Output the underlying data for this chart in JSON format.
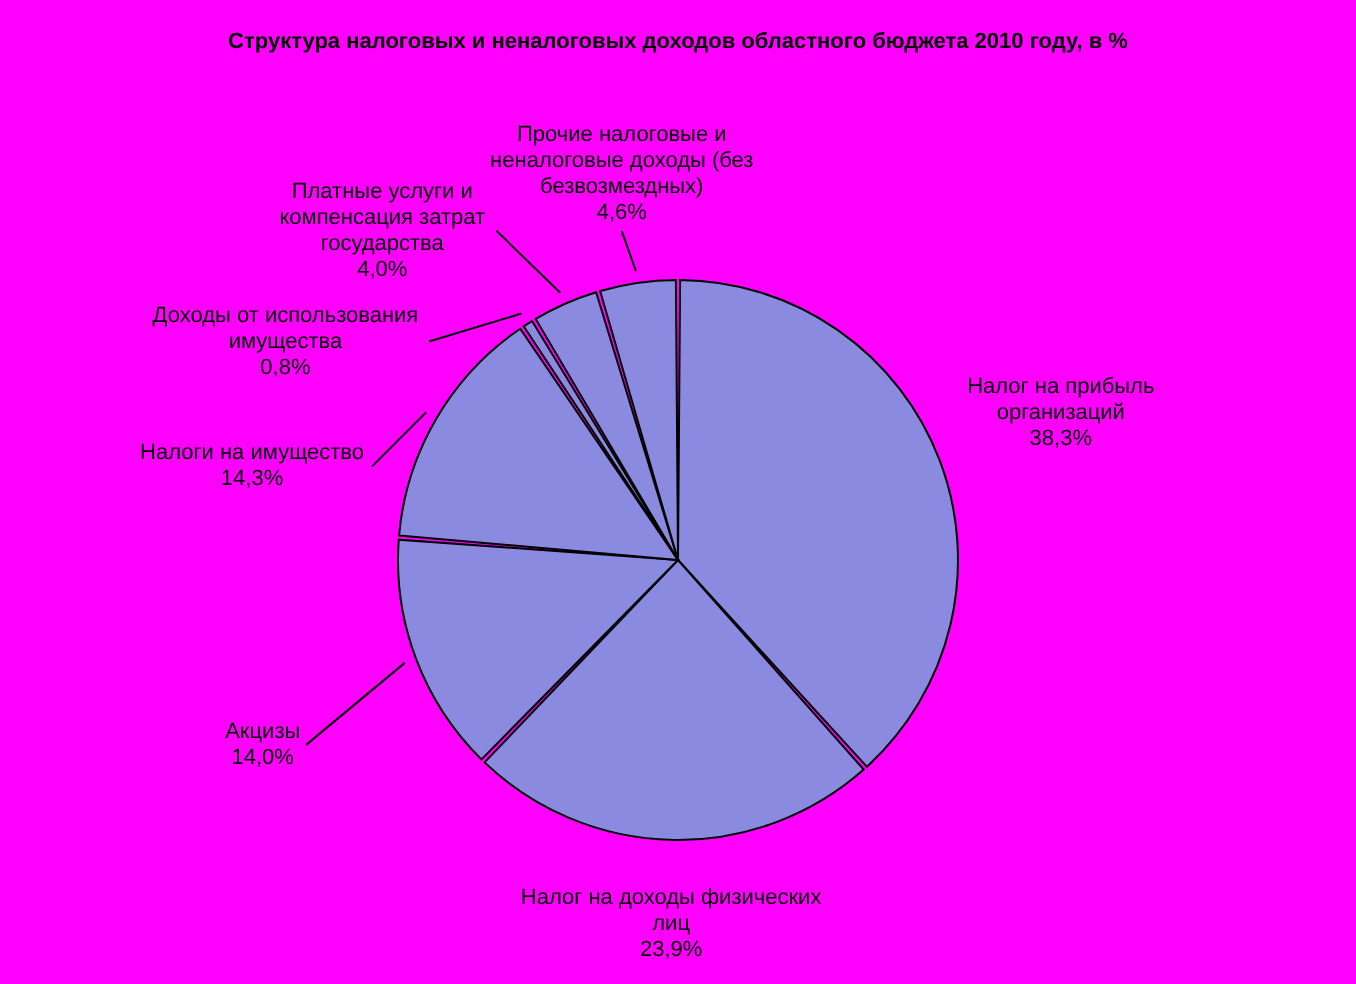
{
  "chart_data": {
    "type": "pie",
    "title": "Структура налоговых и неналоговых доходов областного бюджета 2010 году, в %",
    "categories": [
      "Налог на прибыль организаций",
      "Налог на доходы физических лиц",
      "Акцизы",
      "Налоги на имущество",
      "Доходы от использования имущества",
      "Платные услуги и компенсация затрат государства",
      "Прочие налоговые и неналоговые доходы (без безвозмездных)"
    ],
    "values": [
      38.3,
      23.9,
      14.0,
      14.3,
      0.8,
      4.0,
      4.6
    ],
    "colors": [
      "#8a8ae0",
      "#8a8ae0",
      "#8a8ae0",
      "#8a8ae0",
      "#8a8ae0",
      "#8a8ae0",
      "#8a8ae0"
    ],
    "value_labels": [
      "38,3%",
      "23,9%",
      "14,0%",
      "14,3%",
      "0,8%",
      "4,0%",
      "4,6%"
    ]
  }
}
